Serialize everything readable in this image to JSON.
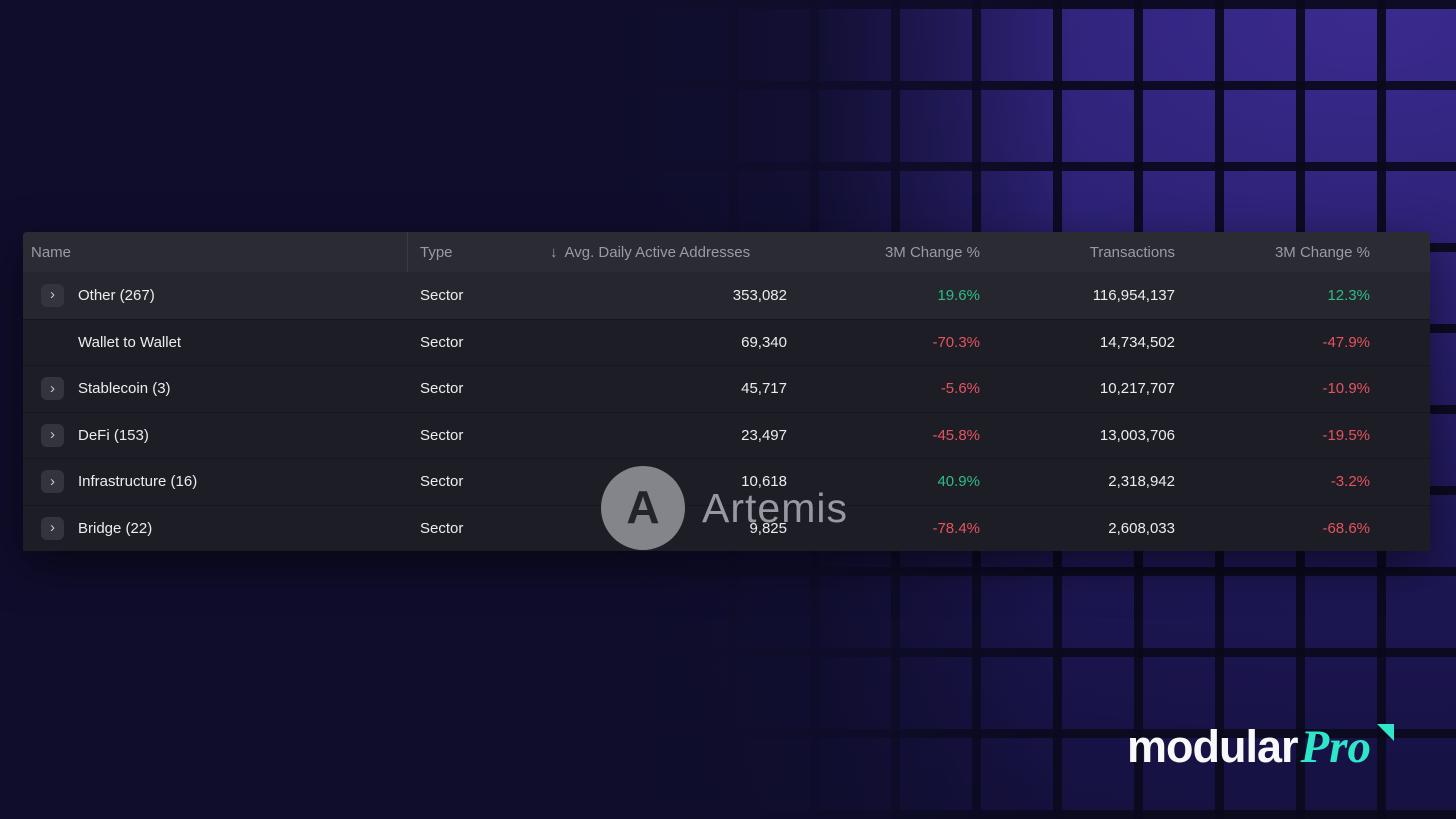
{
  "colors": {
    "positive": "#2ebd85",
    "negative": "#e5535f",
    "accent_teal": "#2ee6c8"
  },
  "icons": {
    "expand_chevron": "›",
    "sort_desc": "↓"
  },
  "table": {
    "columns": [
      {
        "label": "Name"
      },
      {
        "label": "Type"
      },
      {
        "label": "Avg. Daily Active Addresses",
        "sort_indicator": "↓"
      },
      {
        "label": "3M Change %"
      },
      {
        "label": "Transactions"
      },
      {
        "label": "3M Change %"
      }
    ],
    "rows": [
      {
        "name": "Other (267)",
        "expandable": true,
        "type": "Sector",
        "avg_daily_active_addresses": "353,082",
        "addresses_3m_change": "19.6%",
        "transactions": "116,954,137",
        "transactions_3m_change": "12.3%"
      },
      {
        "name": "Wallet to Wallet",
        "expandable": false,
        "type": "Sector",
        "avg_daily_active_addresses": "69,340",
        "addresses_3m_change": "-70.3%",
        "transactions": "14,734,502",
        "transactions_3m_change": "-47.9%"
      },
      {
        "name": "Stablecoin (3)",
        "expandable": true,
        "type": "Sector",
        "avg_daily_active_addresses": "45,717",
        "addresses_3m_change": "-5.6%",
        "transactions": "10,217,707",
        "transactions_3m_change": "-10.9%"
      },
      {
        "name": "DeFi (153)",
        "expandable": true,
        "type": "Sector",
        "avg_daily_active_addresses": "23,497",
        "addresses_3m_change": "-45.8%",
        "transactions": "13,003,706",
        "transactions_3m_change": "-19.5%"
      },
      {
        "name": "Infrastructure (16)",
        "expandable": true,
        "type": "Sector",
        "avg_daily_active_addresses": "10,618",
        "addresses_3m_change": "40.9%",
        "transactions": "2,318,942",
        "transactions_3m_change": "-3.2%"
      },
      {
        "name": "Bridge (22)",
        "expandable": true,
        "type": "Sector",
        "avg_daily_active_addresses": "9,825",
        "addresses_3m_change": "-78.4%",
        "transactions": "2,608,033",
        "transactions_3m_change": "-68.6%"
      }
    ]
  },
  "watermark": {
    "logo_letter": "A",
    "text": "Artemis"
  },
  "brand": {
    "name": "modular",
    "suffix": "Pro"
  }
}
